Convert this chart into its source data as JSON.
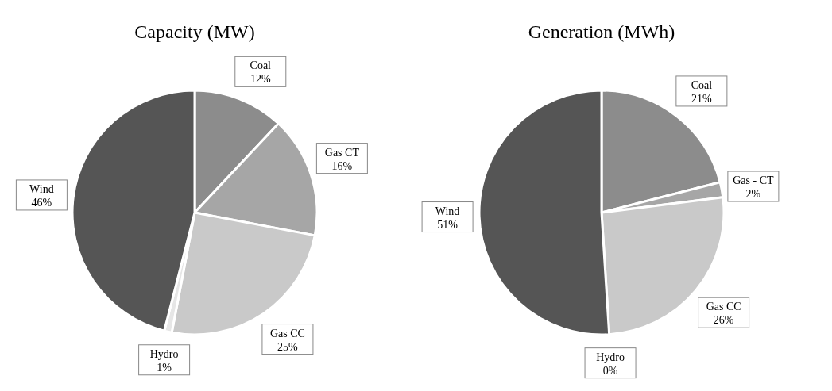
{
  "chart_data": [
    {
      "type": "pie",
      "title": "Capacity (MW)",
      "categories": [
        "Coal",
        "Gas CT",
        "Gas CC",
        "Hydro",
        "Wind"
      ],
      "values": [
        12,
        16,
        25,
        1,
        46
      ],
      "value_labels": [
        "12%",
        "16%",
        "25%",
        "1%",
        "46%"
      ],
      "colors": [
        "#8c8c8c",
        "#a6a6a6",
        "#c9c9c9",
        "#e6e6e6",
        "#555555"
      ],
      "legend": false
    },
    {
      "type": "pie",
      "title": "Generation (MWh)",
      "categories": [
        "Coal",
        "Gas - CT",
        "Gas CC",
        "Hydro",
        "Wind"
      ],
      "values": [
        21,
        2,
        26,
        0,
        51
      ],
      "value_labels": [
        "21%",
        "2%",
        "26%",
        "0%",
        "51%"
      ],
      "colors": [
        "#8c8c8c",
        "#a6a6a6",
        "#c9c9c9",
        null,
        "#555555"
      ],
      "legend": false
    }
  ]
}
